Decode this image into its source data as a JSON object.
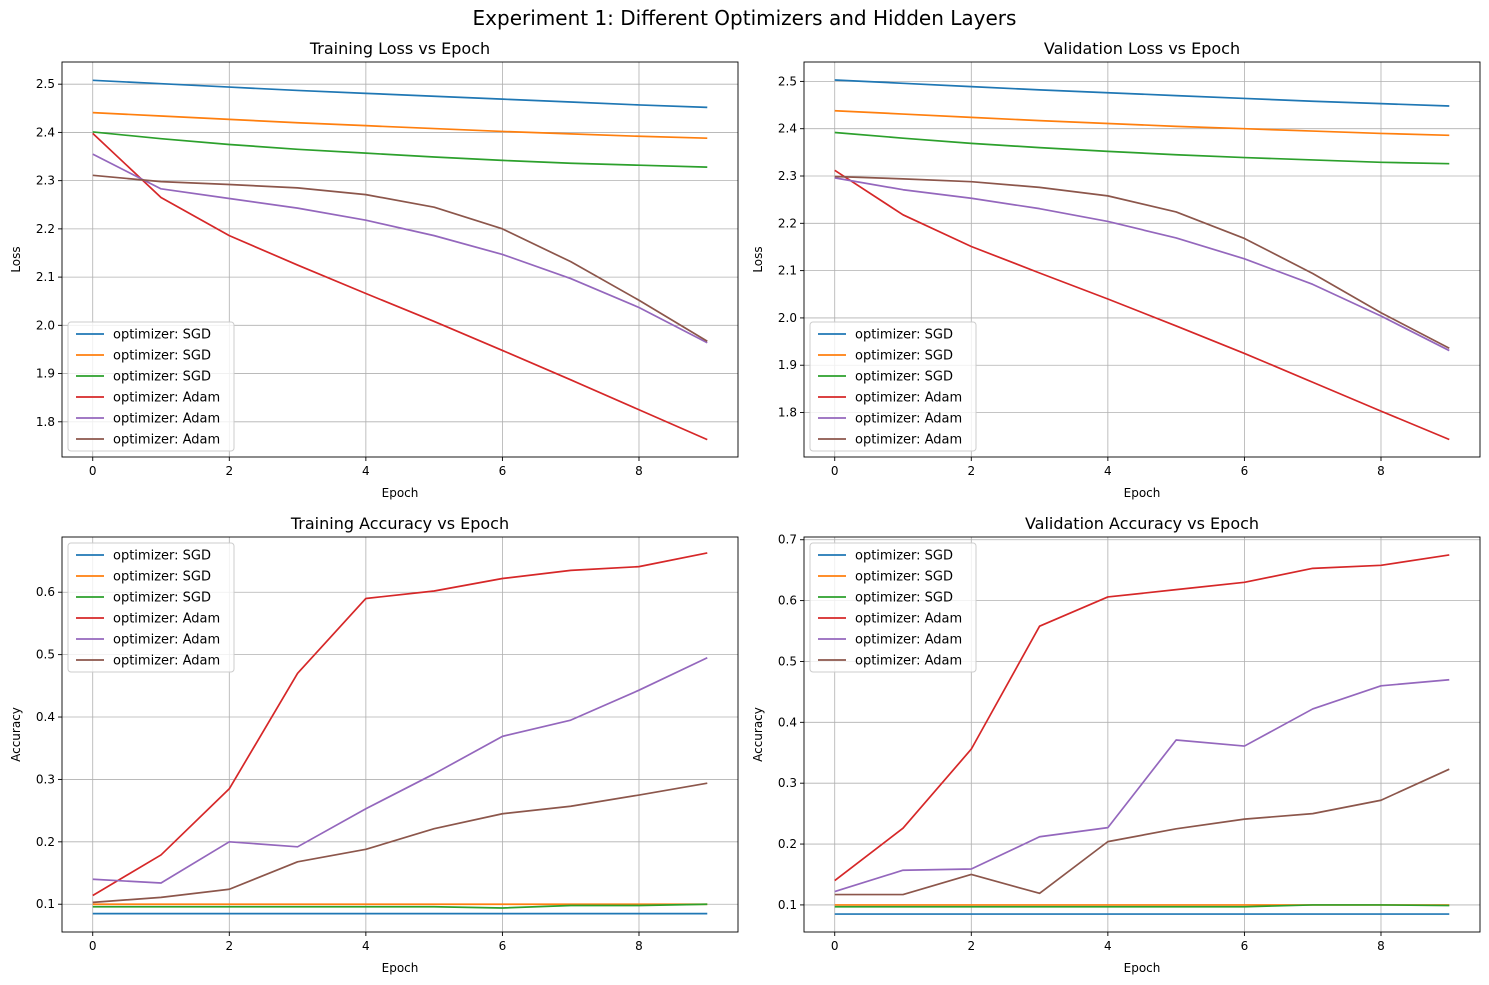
{
  "figure": {
    "title": "Experiment 1: Different Optimizers and Hidden Layers"
  },
  "colors": [
    "#1f77b4",
    "#ff7f0e",
    "#2ca02c",
    "#d62728",
    "#9467bd",
    "#8c564b"
  ],
  "chart_data": [
    {
      "type": "line",
      "title": "Training Loss vs Epoch",
      "xlabel": "Epoch",
      "ylabel": "Loss",
      "xlim": [
        -0.45,
        9.45
      ],
      "ylim": [
        1.727,
        2.546
      ],
      "xticks": [
        0,
        2,
        4,
        6,
        8
      ],
      "yticks": [
        1.8,
        1.9,
        2.0,
        2.1,
        2.2,
        2.3,
        2.4,
        2.5
      ],
      "tick_decimals": 1,
      "grid": true,
      "legend": "lower-left",
      "x": [
        0,
        1,
        2,
        3,
        4,
        5,
        6,
        7,
        8,
        9
      ],
      "series": [
        {
          "name": "optimizer: SGD",
          "values": [
            2.508,
            2.501,
            2.494,
            2.487,
            2.481,
            2.475,
            2.469,
            2.463,
            2.457,
            2.452
          ]
        },
        {
          "name": "optimizer: SGD",
          "values": [
            2.441,
            2.434,
            2.427,
            2.42,
            2.414,
            2.408,
            2.402,
            2.397,
            2.392,
            2.388
          ]
        },
        {
          "name": "optimizer: SGD",
          "values": [
            2.401,
            2.387,
            2.375,
            2.365,
            2.357,
            2.349,
            2.342,
            2.336,
            2.332,
            2.328
          ]
        },
        {
          "name": "optimizer: Adam",
          "values": [
            2.398,
            2.265,
            2.186,
            2.125,
            2.066,
            2.008,
            1.948,
            1.887,
            1.825,
            1.763
          ]
        },
        {
          "name": "optimizer: Adam",
          "values": [
            2.355,
            2.283,
            2.263,
            2.243,
            2.218,
            2.186,
            2.147,
            2.097,
            2.037,
            1.964
          ]
        },
        {
          "name": "optimizer: Adam",
          "values": [
            2.311,
            2.298,
            2.292,
            2.285,
            2.271,
            2.245,
            2.2,
            2.132,
            2.052,
            1.967
          ]
        }
      ]
    },
    {
      "type": "line",
      "title": "Validation Loss vs Epoch",
      "xlabel": "Epoch",
      "ylabel": "Loss",
      "xlim": [
        -0.45,
        9.45
      ],
      "ylim": [
        1.706,
        2.541
      ],
      "xticks": [
        0,
        2,
        4,
        6,
        8
      ],
      "yticks": [
        1.8,
        1.9,
        2.0,
        2.1,
        2.2,
        2.3,
        2.4,
        2.5
      ],
      "tick_decimals": 1,
      "grid": true,
      "legend": "lower-left",
      "x": [
        0,
        1,
        2,
        3,
        4,
        5,
        6,
        7,
        8,
        9
      ],
      "series": [
        {
          "name": "optimizer: SGD",
          "values": [
            2.503,
            2.496,
            2.489,
            2.482,
            2.476,
            2.47,
            2.464,
            2.458,
            2.453,
            2.448
          ]
        },
        {
          "name": "optimizer: SGD",
          "values": [
            2.438,
            2.431,
            2.424,
            2.417,
            2.411,
            2.405,
            2.4,
            2.395,
            2.39,
            2.386
          ]
        },
        {
          "name": "optimizer: SGD",
          "values": [
            2.392,
            2.38,
            2.369,
            2.36,
            2.352,
            2.345,
            2.339,
            2.334,
            2.329,
            2.326
          ]
        },
        {
          "name": "optimizer: Adam",
          "values": [
            2.312,
            2.218,
            2.151,
            2.095,
            2.04,
            1.983,
            1.925,
            1.864,
            1.803,
            1.743
          ]
        },
        {
          "name": "optimizer: Adam",
          "values": [
            2.296,
            2.271,
            2.253,
            2.231,
            2.204,
            2.169,
            2.125,
            2.071,
            2.004,
            1.931
          ]
        },
        {
          "name": "optimizer: Adam",
          "values": [
            2.299,
            2.294,
            2.288,
            2.276,
            2.258,
            2.224,
            2.168,
            2.094,
            2.011,
            1.936
          ]
        }
      ]
    },
    {
      "type": "line",
      "title": "Training Accuracy vs Epoch",
      "xlabel": "Epoch",
      "ylabel": "Accuracy",
      "xlim": [
        -0.45,
        9.45
      ],
      "ylim": [
        0.0555,
        0.6885
      ],
      "xticks": [
        0,
        2,
        4,
        6,
        8
      ],
      "yticks": [
        0.1,
        0.2,
        0.3,
        0.4,
        0.5,
        0.6
      ],
      "tick_decimals": 1,
      "grid": true,
      "legend": "upper-left",
      "x": [
        0,
        1,
        2,
        3,
        4,
        5,
        6,
        7,
        8,
        9
      ],
      "series": [
        {
          "name": "optimizer: SGD",
          "values": [
            0.085,
            0.085,
            0.085,
            0.085,
            0.085,
            0.085,
            0.085,
            0.085,
            0.085,
            0.085
          ]
        },
        {
          "name": "optimizer: SGD",
          "values": [
            0.1,
            0.1,
            0.1,
            0.1,
            0.1,
            0.1,
            0.1,
            0.1,
            0.1,
            0.1
          ]
        },
        {
          "name": "optimizer: SGD",
          "values": [
            0.096,
            0.096,
            0.096,
            0.096,
            0.096,
            0.096,
            0.094,
            0.098,
            0.098,
            0.1
          ]
        },
        {
          "name": "optimizer: Adam",
          "values": [
            0.114,
            0.179,
            0.285,
            0.47,
            0.59,
            0.602,
            0.622,
            0.635,
            0.641,
            0.663
          ]
        },
        {
          "name": "optimizer: Adam",
          "values": [
            0.14,
            0.134,
            0.2,
            0.192,
            0.253,
            0.309,
            0.369,
            0.395,
            0.443,
            0.495
          ]
        },
        {
          "name": "optimizer: Adam",
          "values": [
            0.103,
            0.111,
            0.124,
            0.168,
            0.188,
            0.221,
            0.245,
            0.257,
            0.275,
            0.294
          ]
        }
      ]
    },
    {
      "type": "line",
      "title": "Validation Accuracy vs Epoch",
      "xlabel": "Epoch",
      "ylabel": "Accuracy",
      "xlim": [
        -0.45,
        9.45
      ],
      "ylim": [
        0.0555,
        0.7045
      ],
      "xticks": [
        0,
        2,
        4,
        6,
        8
      ],
      "yticks": [
        0.1,
        0.2,
        0.3,
        0.4,
        0.5,
        0.6,
        0.7
      ],
      "tick_decimals": 1,
      "grid": true,
      "legend": "upper-left",
      "x": [
        0,
        1,
        2,
        3,
        4,
        5,
        6,
        7,
        8,
        9
      ],
      "series": [
        {
          "name": "optimizer: SGD",
          "values": [
            0.085,
            0.085,
            0.085,
            0.085,
            0.085,
            0.085,
            0.085,
            0.085,
            0.085,
            0.085
          ]
        },
        {
          "name": "optimizer: SGD",
          "values": [
            0.1,
            0.1,
            0.1,
            0.1,
            0.1,
            0.1,
            0.1,
            0.1,
            0.1,
            0.1
          ]
        },
        {
          "name": "optimizer: SGD",
          "values": [
            0.097,
            0.097,
            0.097,
            0.097,
            0.097,
            0.097,
            0.097,
            0.1,
            0.1,
            0.099
          ]
        },
        {
          "name": "optimizer: Adam",
          "values": [
            0.14,
            0.226,
            0.356,
            0.558,
            0.606,
            0.618,
            0.63,
            0.653,
            0.658,
            0.675
          ]
        },
        {
          "name": "optimizer: Adam",
          "values": [
            0.122,
            0.157,
            0.159,
            0.212,
            0.227,
            0.371,
            0.361,
            0.422,
            0.46,
            0.47
          ]
        },
        {
          "name": "optimizer: Adam",
          "values": [
            0.117,
            0.117,
            0.15,
            0.119,
            0.204,
            0.225,
            0.241,
            0.25,
            0.272,
            0.323
          ]
        }
      ]
    }
  ]
}
